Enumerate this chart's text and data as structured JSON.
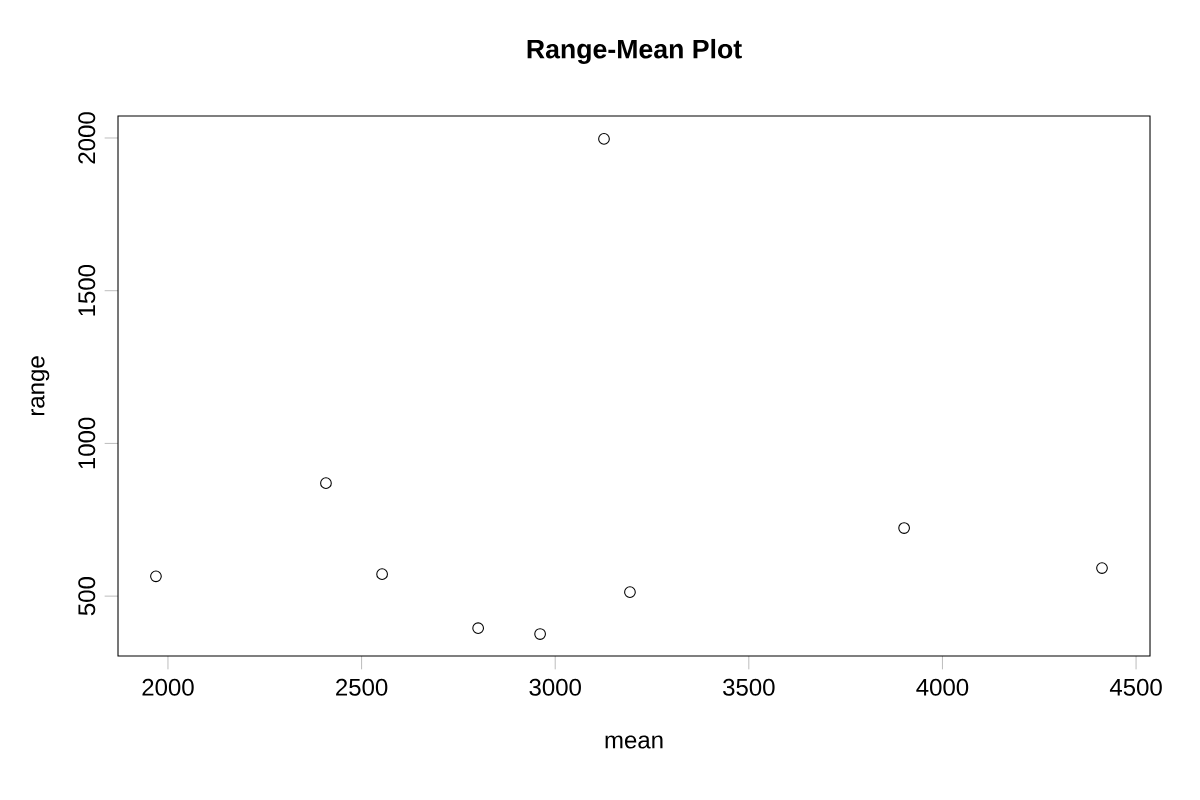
{
  "chart_data": {
    "type": "scatter",
    "title": "Range-Mean Plot",
    "xlabel": "mean",
    "ylabel": "range",
    "x": [
      1969,
      2408,
      2553,
      2801,
      2961,
      3126,
      3193,
      3901,
      4412
    ],
    "values": [
      565,
      870,
      572,
      395,
      376,
      1997,
      513,
      723,
      592
    ],
    "color": "#000000",
    "marker": "circle",
    "xlim": [
      1871,
      4536
    ],
    "ylim": [
      304,
      2072
    ],
    "xticks": [
      2000,
      2500,
      3000,
      3500,
      4000,
      4500
    ],
    "yticks": [
      500,
      1000,
      1500,
      2000
    ],
    "grid": false
  }
}
